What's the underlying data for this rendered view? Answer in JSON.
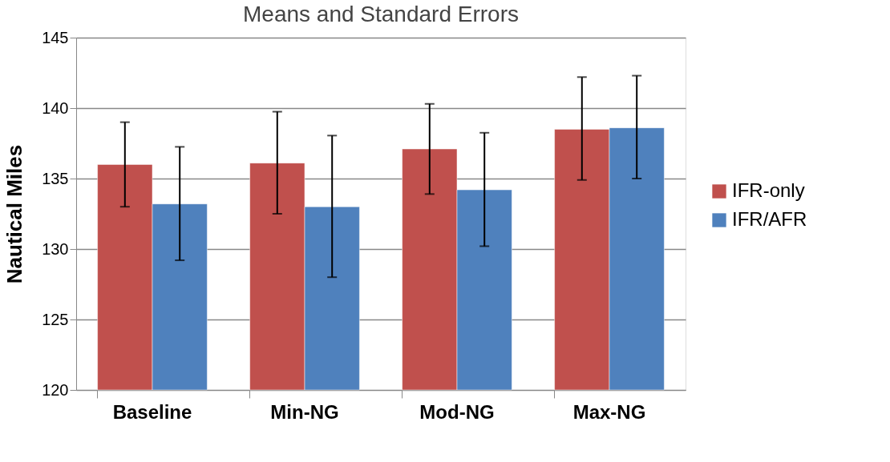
{
  "chart_data": {
    "type": "bar",
    "title": "Means and Standard Errors",
    "ylabel": "Nautical Miles",
    "categories": [
      "Baseline",
      "Min-NG",
      "Mod-NG",
      "Max-NG"
    ],
    "series": [
      {
        "name": "IFR-only",
        "color": "#c0504d",
        "values": [
          136.0,
          136.1,
          137.1,
          138.5
        ],
        "errors": [
          [
            133.0,
            139.0
          ],
          [
            132.5,
            139.75
          ],
          [
            133.9,
            140.3
          ],
          [
            134.9,
            142.2
          ]
        ]
      },
      {
        "name": "IFR/AFR",
        "color": "#4f81bd",
        "values": [
          133.2,
          133.0,
          134.2,
          138.6
        ],
        "errors": [
          [
            129.2,
            137.25
          ],
          [
            128.0,
            138.05
          ],
          [
            130.2,
            138.25
          ],
          [
            135.0,
            142.3
          ]
        ]
      }
    ],
    "ylim": [
      120,
      145
    ],
    "yticks": [
      120,
      125,
      130,
      135,
      140,
      145
    ],
    "grid": "y",
    "legend": "right"
  }
}
